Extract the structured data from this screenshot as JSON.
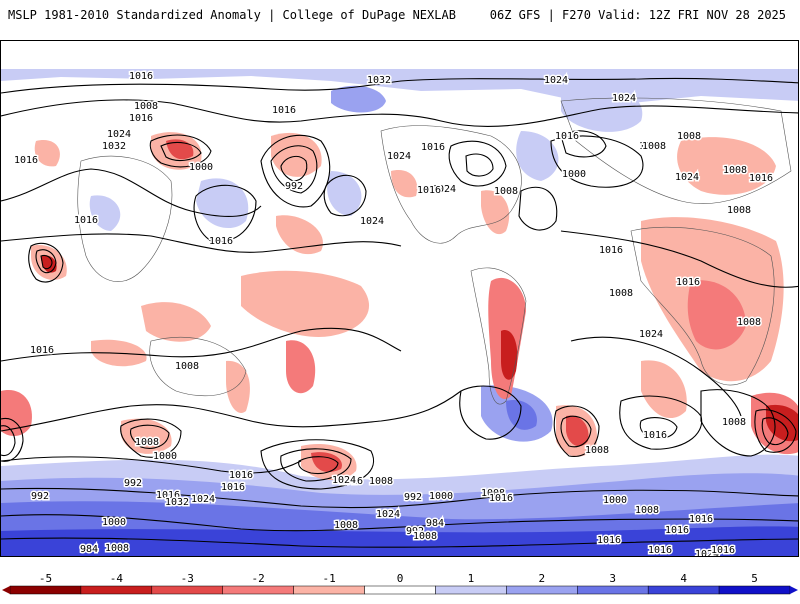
{
  "header": {
    "left": "MSLP 1981-2010 Standardized Anomaly | College of DuPage NEXLAB",
    "right": "06Z GFS | F270 Valid: 12Z FRI NOV 28 2025"
  },
  "colorbar": {
    "ticks": [
      "-5",
      "-4",
      "-3",
      "-2",
      "-1",
      "0",
      "1",
      "2",
      "3",
      "4",
      "5"
    ],
    "colors": [
      "#8b0000",
      "#c81e1e",
      "#e34a4a",
      "#f47a7a",
      "#fbb3a6",
      "#ffffff",
      "#c8ccf5",
      "#9aa2f0",
      "#6a74e6",
      "#3a43d8",
      "#1010c8"
    ]
  },
  "contour_labels": [
    "1016",
    "1008",
    "1016",
    "1024",
    "1032",
    "1016",
    "1000",
    "992",
    "1016",
    "1024",
    "1016",
    "1016",
    "1032",
    "1024",
    "1016",
    "1024",
    "1016",
    "1008",
    "1024",
    "1024",
    "1016",
    "1000",
    "1016",
    "1008",
    "1024",
    "1016",
    "1008",
    "1008",
    "1016",
    "1016",
    "1008",
    "1008",
    "1024",
    "1008",
    "1016",
    "1008",
    "1008",
    "1016",
    "1008",
    "1016",
    "1000",
    "1008",
    "1016",
    "1024",
    "1016",
    "1008",
    "1000",
    "992",
    "992",
    "984",
    "992",
    "1008",
    "1000",
    "984",
    "1008",
    "1024",
    "1032",
    "1016",
    "1008",
    "1024",
    "1016",
    "992",
    "1016",
    "1000",
    "1008",
    "1016",
    "1024",
    "1016",
    "1016",
    "1016",
    "1008"
  ]
}
